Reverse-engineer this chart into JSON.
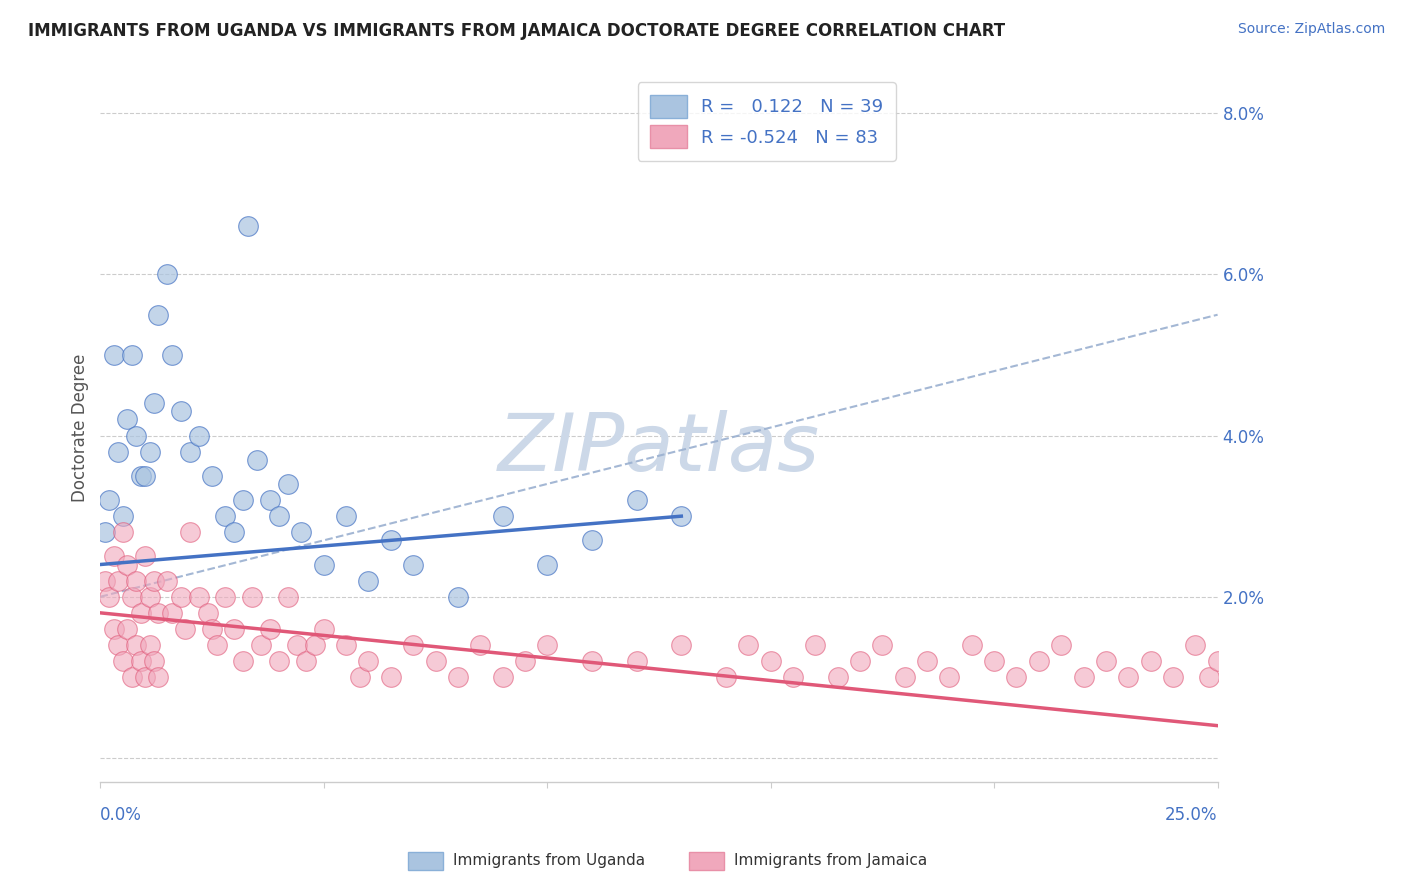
{
  "title": "IMMIGRANTS FROM UGANDA VS IMMIGRANTS FROM JAMAICA DOCTORATE DEGREE CORRELATION CHART",
  "source": "Source: ZipAtlas.com",
  "ylabel": "Doctorate Degree",
  "x_min": 0.0,
  "x_max": 0.25,
  "y_min": -0.003,
  "y_max": 0.085,
  "legend_uganda": "Immigrants from Uganda",
  "legend_jamaica": "Immigrants from Jamaica",
  "R_uganda": "0.122",
  "N_uganda": "39",
  "R_jamaica": "-0.524",
  "N_jamaica": "83",
  "color_uganda": "#aac4e0",
  "color_jamaica": "#f0a8bc",
  "trendline_uganda": "#4472c4",
  "trendline_jamaica": "#e05878",
  "trendline_dashed_color": "#9ab0d0",
  "watermark_color": "#ccd8e8",
  "uganda_x": [
    0.001,
    0.002,
    0.003,
    0.004,
    0.005,
    0.006,
    0.007,
    0.008,
    0.009,
    0.01,
    0.011,
    0.012,
    0.013,
    0.015,
    0.016,
    0.018,
    0.02,
    0.022,
    0.025,
    0.028,
    0.03,
    0.032,
    0.033,
    0.035,
    0.038,
    0.04,
    0.042,
    0.045,
    0.05,
    0.055,
    0.06,
    0.065,
    0.07,
    0.08,
    0.09,
    0.1,
    0.11,
    0.12,
    0.13
  ],
  "uganda_y": [
    0.028,
    0.032,
    0.05,
    0.038,
    0.03,
    0.042,
    0.05,
    0.04,
    0.035,
    0.035,
    0.038,
    0.044,
    0.055,
    0.06,
    0.05,
    0.043,
    0.038,
    0.04,
    0.035,
    0.03,
    0.028,
    0.032,
    0.066,
    0.037,
    0.032,
    0.03,
    0.034,
    0.028,
    0.024,
    0.03,
    0.022,
    0.027,
    0.024,
    0.02,
    0.03,
    0.024,
    0.027,
    0.032,
    0.03
  ],
  "jamaica_x": [
    0.001,
    0.002,
    0.003,
    0.004,
    0.005,
    0.006,
    0.007,
    0.008,
    0.009,
    0.01,
    0.011,
    0.012,
    0.013,
    0.015,
    0.016,
    0.018,
    0.019,
    0.02,
    0.022,
    0.024,
    0.025,
    0.026,
    0.028,
    0.03,
    0.032,
    0.034,
    0.036,
    0.038,
    0.04,
    0.042,
    0.044,
    0.046,
    0.048,
    0.05,
    0.055,
    0.058,
    0.06,
    0.065,
    0.07,
    0.075,
    0.08,
    0.085,
    0.09,
    0.095,
    0.1,
    0.11,
    0.12,
    0.13,
    0.14,
    0.145,
    0.15,
    0.155,
    0.16,
    0.165,
    0.17,
    0.175,
    0.18,
    0.185,
    0.19,
    0.195,
    0.2,
    0.205,
    0.21,
    0.215,
    0.22,
    0.225,
    0.23,
    0.235,
    0.24,
    0.245,
    0.248,
    0.25,
    0.003,
    0.004,
    0.005,
    0.006,
    0.007,
    0.008,
    0.009,
    0.01,
    0.011,
    0.012,
    0.013
  ],
  "jamaica_y": [
    0.022,
    0.02,
    0.025,
    0.022,
    0.028,
    0.024,
    0.02,
    0.022,
    0.018,
    0.025,
    0.02,
    0.022,
    0.018,
    0.022,
    0.018,
    0.02,
    0.016,
    0.028,
    0.02,
    0.018,
    0.016,
    0.014,
    0.02,
    0.016,
    0.012,
    0.02,
    0.014,
    0.016,
    0.012,
    0.02,
    0.014,
    0.012,
    0.014,
    0.016,
    0.014,
    0.01,
    0.012,
    0.01,
    0.014,
    0.012,
    0.01,
    0.014,
    0.01,
    0.012,
    0.014,
    0.012,
    0.012,
    0.014,
    0.01,
    0.014,
    0.012,
    0.01,
    0.014,
    0.01,
    0.012,
    0.014,
    0.01,
    0.012,
    0.01,
    0.014,
    0.012,
    0.01,
    0.012,
    0.014,
    0.01,
    0.012,
    0.01,
    0.012,
    0.01,
    0.014,
    0.01,
    0.012,
    0.016,
    0.014,
    0.012,
    0.016,
    0.01,
    0.014,
    0.012,
    0.01,
    0.014,
    0.012,
    0.01
  ]
}
